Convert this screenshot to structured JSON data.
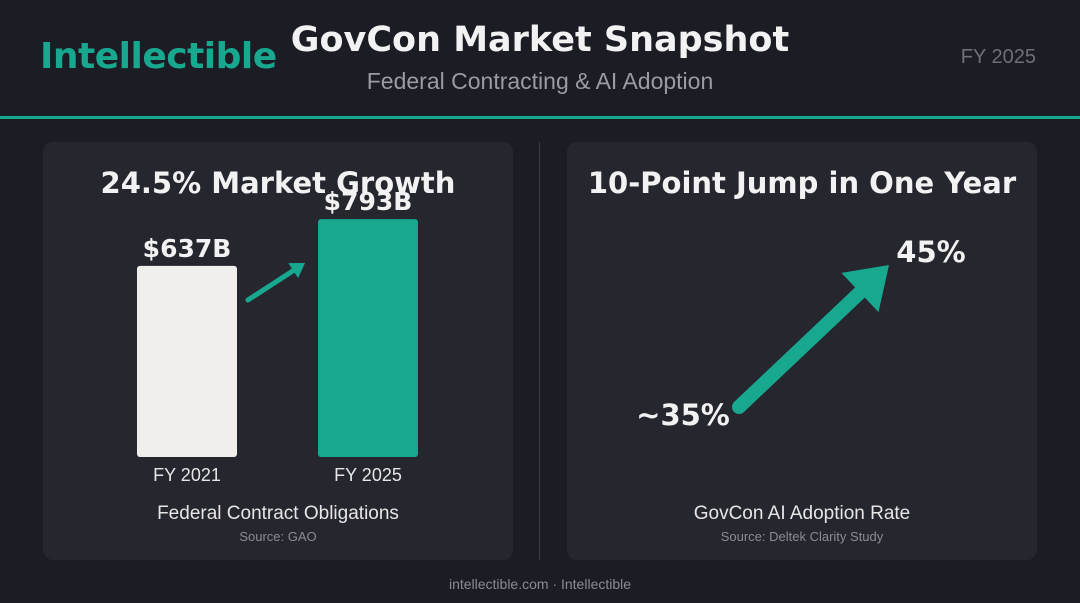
{
  "header": {
    "brand": "Intellectible",
    "title": "GovCon Market Snapshot",
    "subtitle": "Federal Contracting & AI Adoption",
    "period": "FY 2025"
  },
  "colors": {
    "background": "#1b1c24",
    "card": "#25262e",
    "accent": "#17a88f",
    "bar_light": "#f0efeb",
    "text": "#f2f2f2",
    "muted": "#8a8c93"
  },
  "left_panel": {
    "title": "24.5% Market Growth",
    "caption": "Federal Contract Obligations",
    "source": "Source: GAO"
  },
  "right_panel": {
    "title": "10-Point Jump in One Year",
    "caption": "GovCon AI Adoption Rate",
    "source": "Source: Deltek Clarity Study"
  },
  "footer": {
    "text": "intellectible.com · Intellectible"
  },
  "chart_data": [
    {
      "type": "bar",
      "title": "24.5% Market Growth",
      "categories": [
        "FY 2021",
        "FY 2025"
      ],
      "values": [
        637,
        793
      ],
      "value_labels": [
        "$637B",
        "$793B"
      ],
      "unit": "$B",
      "bar_colors": [
        "#f0efeb",
        "#17a88f"
      ],
      "growth_arrow": true,
      "xlabel": "Federal Contract Obligations",
      "source": "Source: GAO"
    },
    {
      "type": "line",
      "title": "10-Point Jump in One Year",
      "points": [
        {
          "label": "~35%",
          "value": 35
        },
        {
          "label": "45%",
          "value": 45
        }
      ],
      "unit": "%",
      "color": "#17a88f",
      "xlabel": "GovCon AI Adoption Rate",
      "source": "Source: Deltek Clarity Study"
    }
  ]
}
